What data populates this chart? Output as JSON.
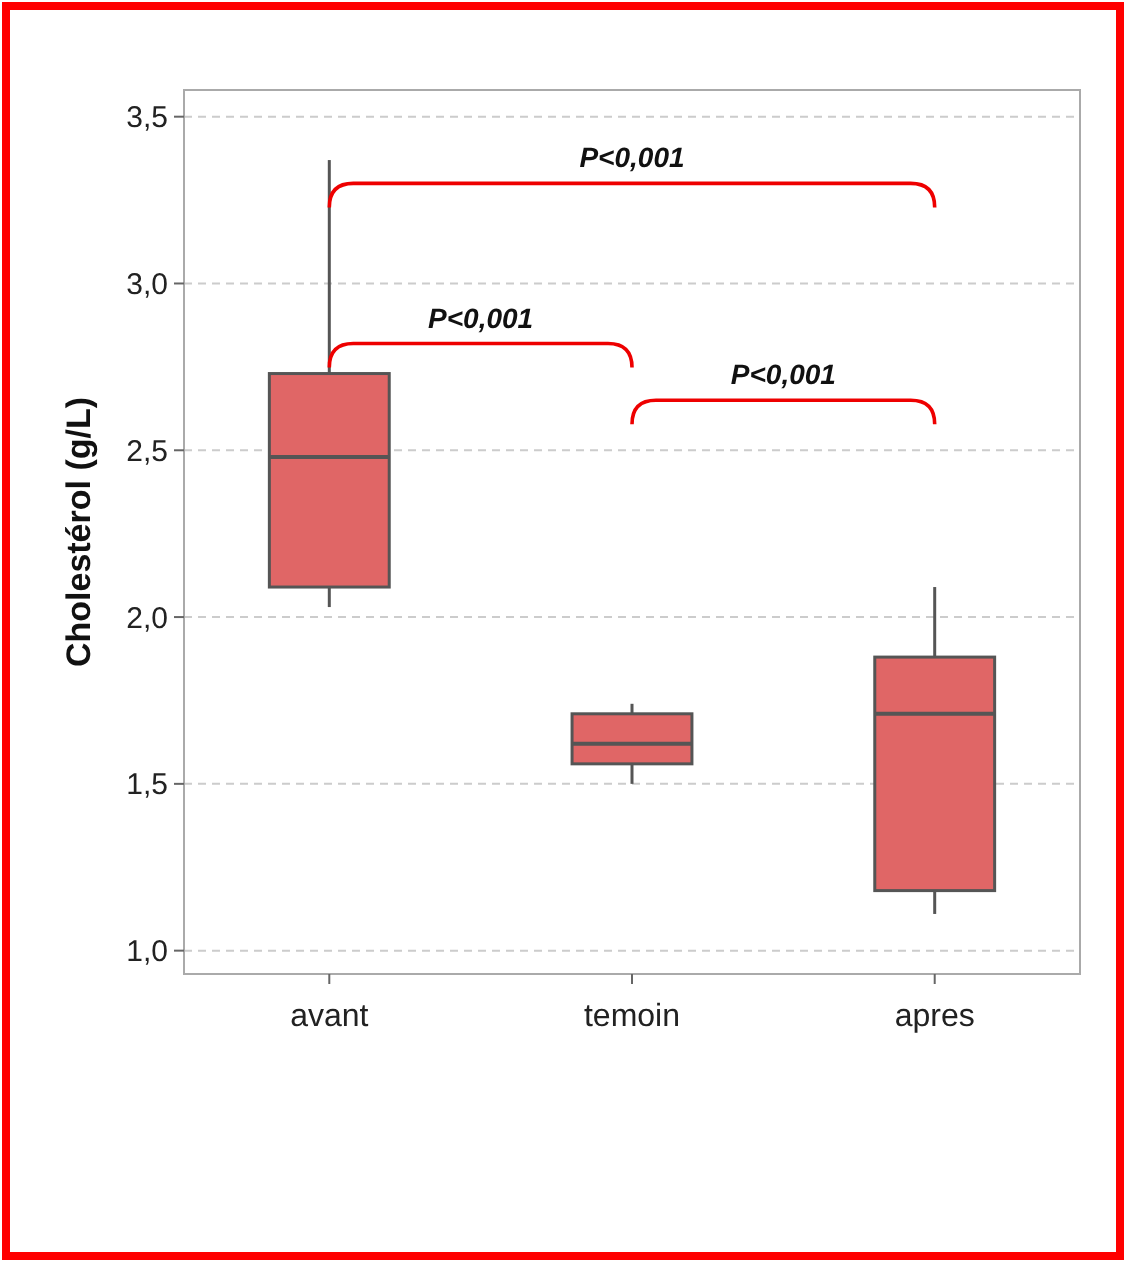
{
  "chart_data": {
    "type": "box",
    "ylabel": "Cholestérol (g/L)",
    "categories": [
      "avant",
      "temoin",
      "apres"
    ],
    "color": "#e06666",
    "boxes": [
      {
        "low": 2.03,
        "q1": 2.09,
        "median": 2.48,
        "q3": 2.73,
        "high": 3.37
      },
      {
        "low": 1.5,
        "q1": 1.56,
        "median": 1.62,
        "q3": 1.71,
        "high": 1.74
      },
      {
        "low": 1.11,
        "q1": 1.18,
        "median": 1.71,
        "q3": 1.88,
        "high": 2.09
      }
    ],
    "ylim": [
      0.93,
      3.58
    ],
    "yticks": [
      {
        "value": 1,
        "label": "1,0"
      },
      {
        "value": 1.5,
        "label": "1,5"
      },
      {
        "value": 2,
        "label": "2,0"
      },
      {
        "value": 2.5,
        "label": "2,5"
      },
      {
        "value": 3,
        "label": "3,0"
      },
      {
        "value": 3.5,
        "label": "3,5"
      }
    ],
    "grid": "y",
    "annotations": [
      "P<0,001",
      "P<0,001",
      "P<0,001"
    ]
  }
}
